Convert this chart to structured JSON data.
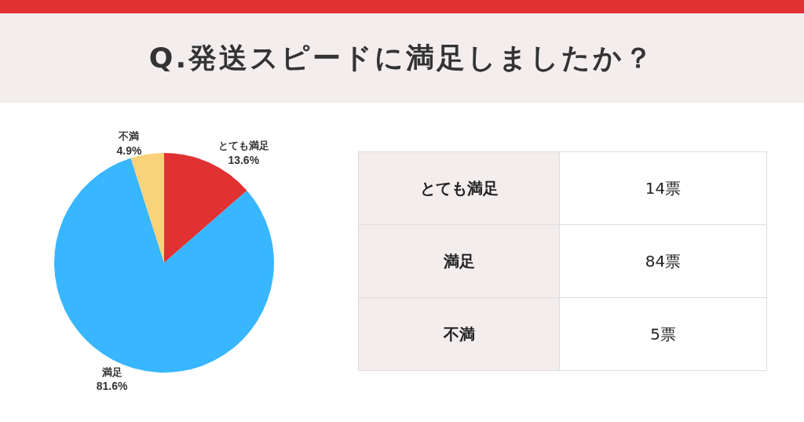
{
  "chart_data": {
    "type": "pie",
    "title": "Q.発送スピードに満足しましたか？",
    "categories": [
      "とても満足",
      "満足",
      "不満"
    ],
    "values": [
      13.6,
      81.6,
      4.9
    ],
    "colors": [
      "#e03232",
      "#38b6ff",
      "#f9d27a"
    ],
    "value_labels": [
      "13.6%",
      "81.6%",
      "4.9%"
    ],
    "annotations": [
      "14票",
      "84票",
      "5票"
    ]
  }
}
